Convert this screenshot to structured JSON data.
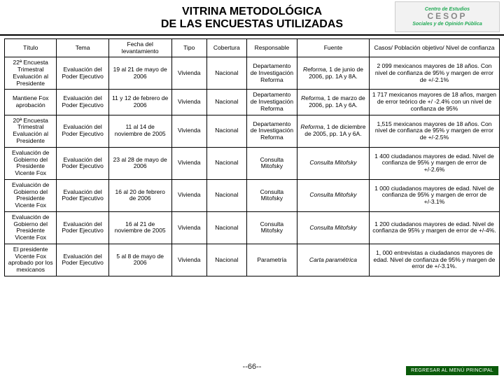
{
  "logo": {
    "top": "Centro de Estudios",
    "mid": "CESOP",
    "bot": "Sociales y de Opinión Pública"
  },
  "title_l1": "VITRINA METODOLÓGICA",
  "title_l2": "DE LAS ENCUESTAS UTILIZADAS",
  "columns": {
    "titulo": "Título",
    "tema": "Tema",
    "fecha": "Fecha del levantamiento",
    "tipo": "Tipo",
    "cobertura": "Cobertura",
    "responsable": "Responsable",
    "fuente": "Fuente",
    "casos": "Casos/ Población objetivo/ Nivel de confianza"
  },
  "rows": [
    {
      "titulo": "22ª Encuesta Trimestral Evaluación al Presidente",
      "tema": "Evaluación del Poder Ejecutivo",
      "fecha": "19 al 21 de mayo de 2006",
      "tipo": "Vivienda",
      "cobertura": "Nacional",
      "responsable": "Departamento de Investigación Reforma",
      "fuente_pre": "Reforma",
      "fuente_post": ", 1 de junio de 2006, pp. 1A y 8A.",
      "casos": "2 099 mexicanos mayores de 18 años. Con nivel de confianza de 95% y margen de error de +/-2.1%"
    },
    {
      "titulo": "Mantiene Fox aprobación",
      "tema": "Evaluación del Poder Ejecutivo",
      "fecha": "11 y 12 de febrero de 2006",
      "tipo": "Vivienda",
      "cobertura": "Nacional",
      "responsable": "Departamento de Investigación Reforma",
      "fuente_pre": "Reforma",
      "fuente_post": ", 1 de marzo de 2006, pp. 1A y 6A.",
      "casos": "1 717 mexicanos mayores de 18 años, margen de error teórico de +/ -2.4% con un nivel de confianza de 95%"
    },
    {
      "titulo": "20ª Encuesta Trimestral Evaluación al Presidente",
      "tema": "Evaluación del Poder Ejecutivo",
      "fecha": "11 al 14 de noviembre de 2005",
      "tipo": "Vivienda",
      "cobertura": "Nacional",
      "responsable": "Departamento de Investigación Reforma",
      "fuente_pre": "Reforma",
      "fuente_post": ", 1 de diciembre de 2005, pp. 1A y 6A.",
      "casos": "1,515 mexicanos mayores de 18 años. Con nivel de confianza de 95% y margen de error de +/-2.5%"
    },
    {
      "titulo": "Evaluación de Gobierno del Presidente Vicente Fox",
      "tema": "Evaluación del Poder Ejecutivo",
      "fecha": "23 al 28 de mayo de 2006",
      "tipo": "Vivienda",
      "cobertura": "Nacional",
      "responsable": "Consulta Mitofsky",
      "fuente_pre": "Consulta Mitofsky",
      "fuente_post": "",
      "casos": "1 400 ciudadanos mayores de edad. Nivel de confianza de 95% y margen de error de +/-2.6%"
    },
    {
      "titulo": "Evaluación de Gobierno del Presidente Vicente Fox",
      "tema": "Evaluación del Poder Ejecutivo",
      "fecha": "16 al 20 de febrero de 2006",
      "tipo": "Vivienda",
      "cobertura": "Nacional",
      "responsable": "Consulta Mitofsky",
      "fuente_pre": "Consulta Mitofsky",
      "fuente_post": "",
      "casos": "1 000 ciudadanos mayores de edad. Nivel de confianza de 95% y margen de error de +/-3.1%"
    },
    {
      "titulo": "Evaluación de Gobierno del Presidente Vicente Fox",
      "tema": "Evaluación del Poder Ejecutivo",
      "fecha": "16 al 21 de noviembre de 2005",
      "tipo": "Vivienda",
      "cobertura": "Nacional",
      "responsable": "Consulta Mitofsky",
      "fuente_pre": "Consulta Mitofsky",
      "fuente_post": "",
      "casos": "1 200 ciudadanos mayores de edad. Nivel de confianza de 95% y margen de error de +/-4%."
    },
    {
      "titulo": "El presidente Vicente Fox aprobado por los mexicanos",
      "tema": "Evaluación del Poder Ejecutivo",
      "fecha": "5 al 8 de mayo de 2006",
      "tipo": "Vivienda",
      "cobertura": "Nacional",
      "responsable": "Parametría",
      "fuente_pre": "Carta paramétrica",
      "fuente_post": "",
      "casos": "1, 000 entrevistas a ciudadanos mayores de edad. Nivel de confianza de 95% y margen de error de +/-3.1%."
    }
  ],
  "page_no": "--66--",
  "back_btn": "REGRESAR AL MENÚ PRINCIPAL"
}
